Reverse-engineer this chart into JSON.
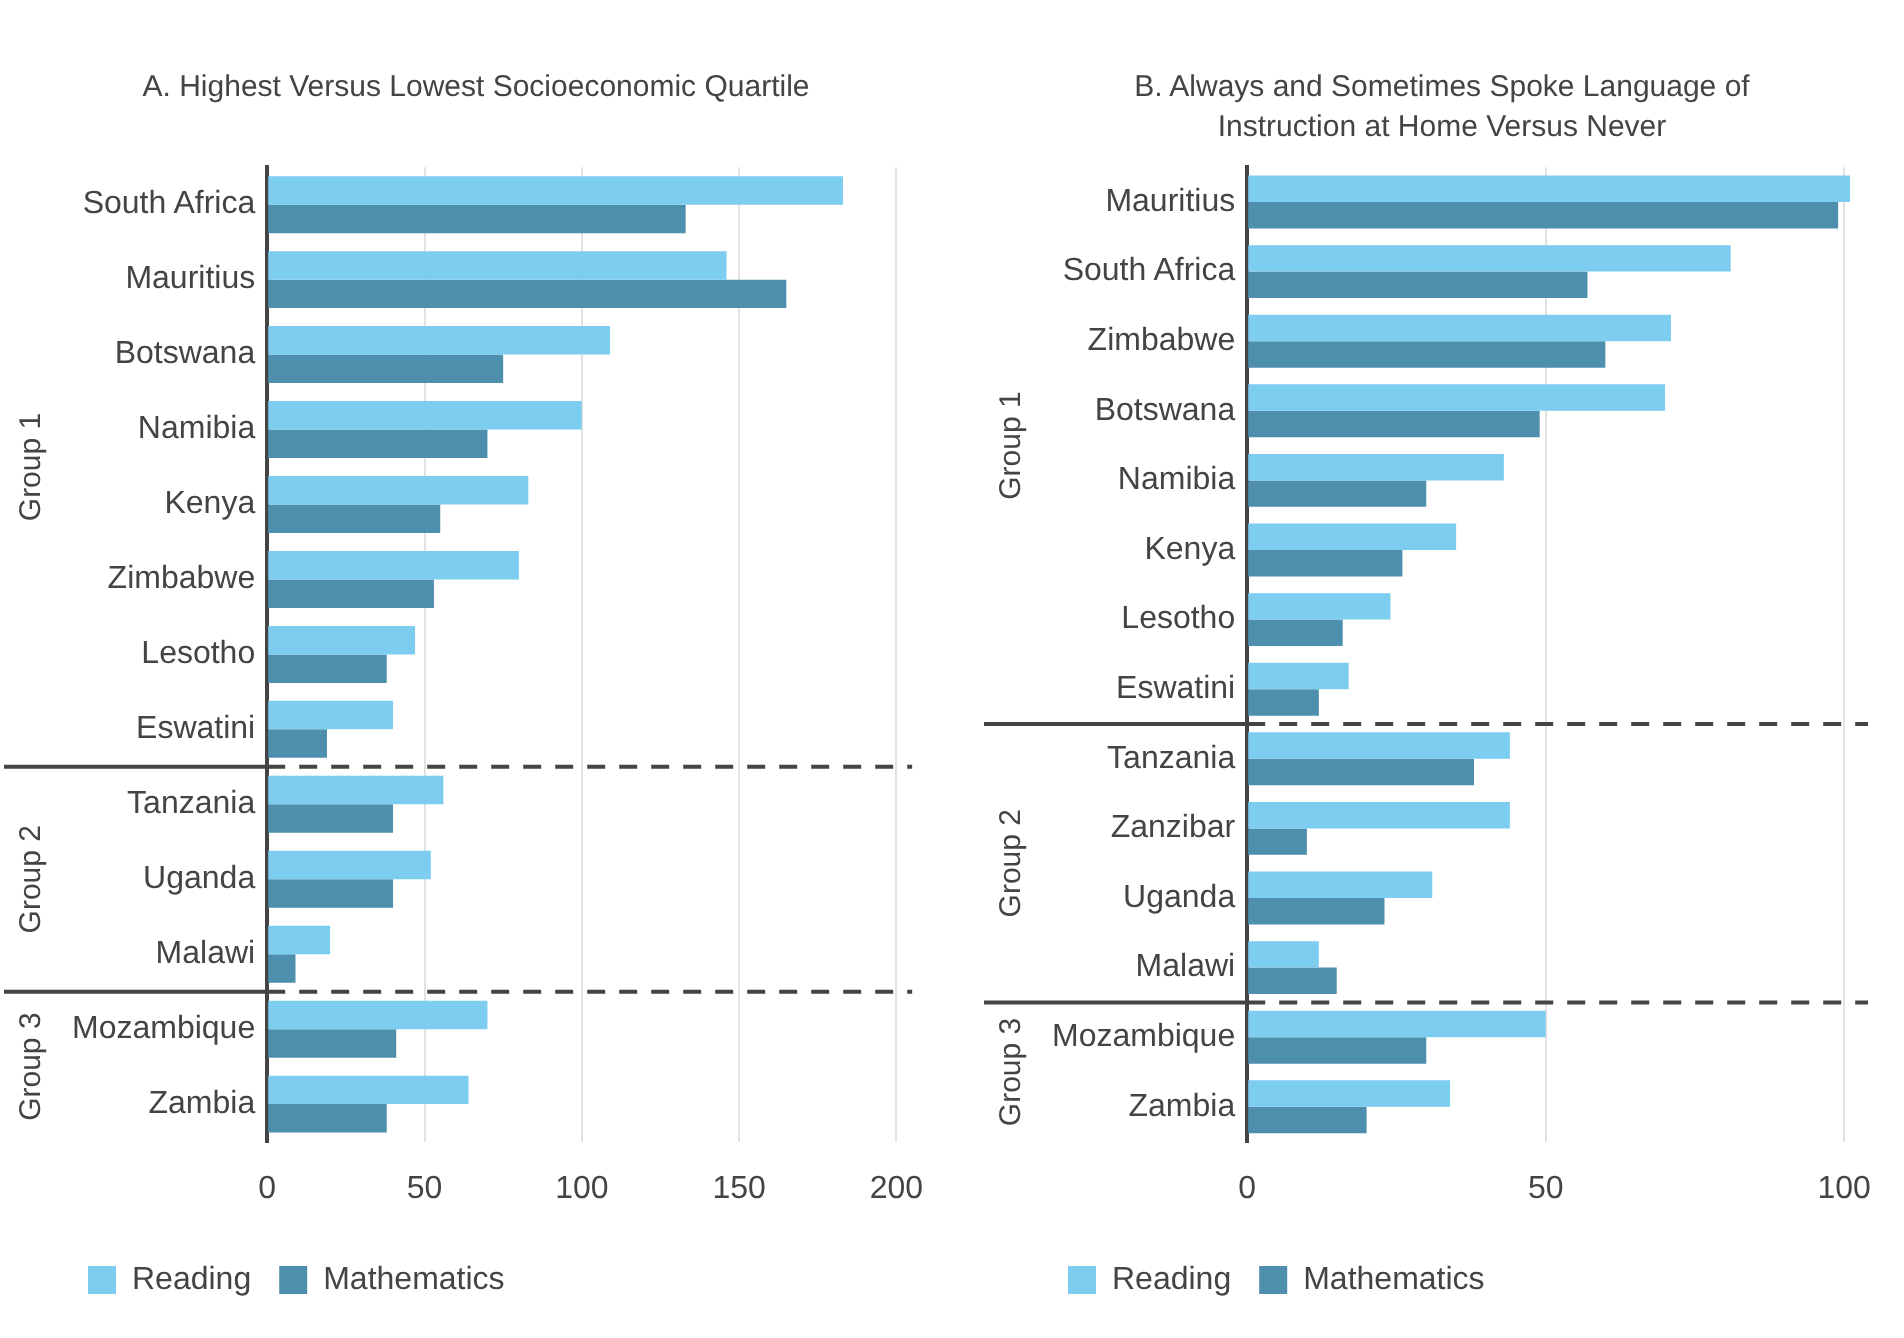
{
  "chart_data": [
    {
      "type": "bar",
      "orientation": "horizontal",
      "title": "A. Highest Versus Lowest Socioeconomic Quartile",
      "categories": [
        "South Africa",
        "Mauritius",
        "Botswana",
        "Namibia",
        "Kenya",
        "Zimbabwe",
        "Lesotho",
        "Eswatini",
        "Tanzania",
        "Uganda",
        "Malawi",
        "Mozambique",
        "Zambia"
      ],
      "series": [
        {
          "name": "Reading",
          "color": "#7dcdf0",
          "values": [
            183,
            146,
            109,
            100,
            83,
            80,
            47,
            40,
            56,
            52,
            20,
            70,
            64
          ]
        },
        {
          "name": "Mathematics",
          "color": "#4f8fae",
          "values": [
            133,
            165,
            75,
            70,
            55,
            53,
            38,
            19,
            40,
            40,
            9,
            41,
            38
          ]
        }
      ],
      "xlim": [
        0,
        205
      ],
      "xticks": [
        0,
        50,
        100,
        150,
        200
      ],
      "grid": "x",
      "legend": "bottom",
      "annotations": [
        "Group 1",
        "Group 2",
        "Group 3"
      ]
    },
    {
      "type": "bar",
      "orientation": "horizontal",
      "title": "B. Always and Sometimes Spoke Language of Instruction at Home Versus Never",
      "categories": [
        "Mauritius",
        "South Africa",
        "Zimbabwe",
        "Botswana",
        "Namibia",
        "Kenya",
        "Lesotho",
        "Eswatini",
        "Tanzania",
        "Zanzibar",
        "Uganda",
        "Malawi",
        "Mozambique",
        "Zambia"
      ],
      "series": [
        {
          "name": "Reading",
          "color": "#7dcdf0",
          "values": [
            101,
            81,
            71,
            70,
            43,
            35,
            24,
            17,
            44,
            44,
            31,
            12,
            50,
            34
          ]
        },
        {
          "name": "Mathematics",
          "color": "#4f8fae",
          "values": [
            99,
            57,
            60,
            49,
            30,
            26,
            16,
            12,
            38,
            10,
            23,
            15,
            30,
            20
          ]
        }
      ],
      "xlim": [
        0,
        104
      ],
      "xticks": [
        0,
        50,
        100
      ],
      "grid": "x",
      "legend": "bottom",
      "annotations": [
        "Group 1",
        "Group 2",
        "Group 3"
      ]
    }
  ]
}
